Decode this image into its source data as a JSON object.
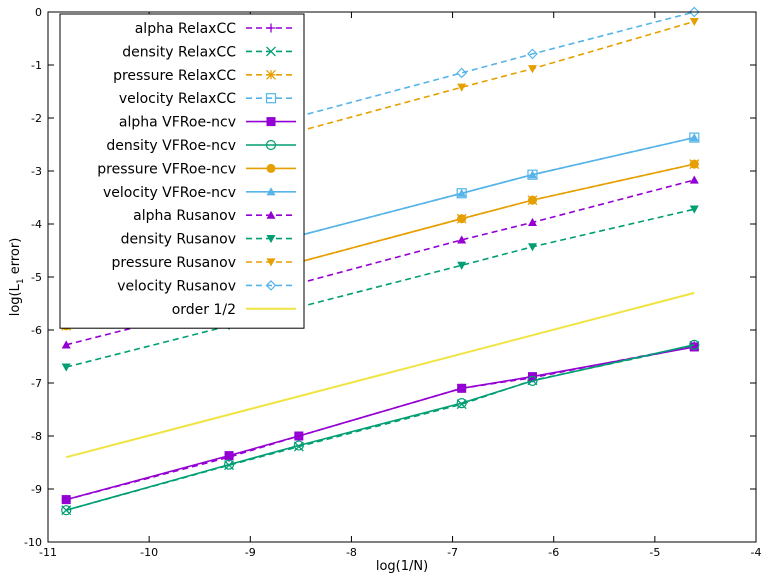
{
  "chart_data": {
    "type": "line",
    "title": "",
    "xlabel": "log(1/N)",
    "ylabel": "log(L",
    "ylabel_sub": "1",
    "ylabel_tail": " error)",
    "xlim": [
      -11,
      -4
    ],
    "ylim": [
      -10,
      0
    ],
    "xticks": [
      -11,
      -10,
      -9,
      -8,
      -7,
      -6,
      -5,
      -4
    ],
    "yticks": [
      -10,
      -9,
      -8,
      -7,
      -6,
      -5,
      -4,
      -3,
      -2,
      -1,
      0
    ],
    "grid": false,
    "legend_position": "top-left",
    "series": [
      {
        "name": "alpha RelaxCC",
        "color": "#9400d3",
        "dash": "dashed",
        "marker": "plus",
        "x": [
          -10.82,
          -9.21,
          -8.52,
          -6.91,
          -6.21,
          -4.61
        ],
        "y": [
          -9.2,
          -8.4,
          -8.0,
          -7.1,
          -6.9,
          -6.3
        ]
      },
      {
        "name": "density RelaxCC",
        "color": "#009e73",
        "dash": "dashed",
        "marker": "cross",
        "x": [
          -10.82,
          -9.21,
          -8.52,
          -6.91,
          -6.21,
          -4.61
        ],
        "y": [
          -9.4,
          -8.55,
          -8.2,
          -7.4,
          -6.95,
          -6.3
        ]
      },
      {
        "name": "pressure RelaxCC",
        "color": "#e69f00",
        "dash": "dashed",
        "marker": "star",
        "x": [
          -10.82,
          -9.21,
          -8.52,
          -6.91,
          -6.21,
          -4.61
        ],
        "y": [
          -5.92,
          -5.1,
          -4.72,
          -3.9,
          -3.55,
          -2.87
        ]
      },
      {
        "name": "velocity RelaxCC",
        "color": "#56b4e9",
        "dash": "dashed",
        "marker": "square-open",
        "x": [
          -10.82,
          -9.21,
          -8.52,
          -6.91,
          -6.21,
          -4.61
        ],
        "y": [
          -5.45,
          -4.6,
          -4.22,
          -3.42,
          -3.07,
          -2.37
        ]
      },
      {
        "name": "alpha VFRoe-ncv",
        "color": "#9400d3",
        "dash": "solid",
        "marker": "square-filled",
        "x": [
          -10.82,
          -9.21,
          -8.52,
          -6.91,
          -6.21,
          -4.61
        ],
        "y": [
          -9.2,
          -8.37,
          -8.0,
          -7.1,
          -6.88,
          -6.32
        ]
      },
      {
        "name": "density VFRoe-ncv",
        "color": "#009e73",
        "dash": "solid",
        "marker": "circle-open",
        "x": [
          -10.82,
          -9.21,
          -8.52,
          -6.91,
          -6.21,
          -4.61
        ],
        "y": [
          -9.4,
          -8.54,
          -8.18,
          -7.38,
          -6.96,
          -6.28
        ]
      },
      {
        "name": "pressure VFRoe-ncv",
        "color": "#e69f00",
        "dash": "solid",
        "marker": "circle-filled",
        "x": [
          -10.82,
          -9.21,
          -8.52,
          -6.91,
          -6.21,
          -4.61
        ],
        "y": [
          -5.92,
          -5.1,
          -4.72,
          -3.9,
          -3.55,
          -2.87
        ]
      },
      {
        "name": "velocity VFRoe-ncv",
        "color": "#56b4e9",
        "dash": "solid",
        "marker": "triangle-up",
        "x": [
          -10.82,
          -9.21,
          -8.52,
          -6.91,
          -6.21,
          -4.61
        ],
        "y": [
          -5.45,
          -4.6,
          -4.22,
          -3.42,
          -3.07,
          -2.37
        ]
      },
      {
        "name": "alpha Rusanov",
        "color": "#9400d3",
        "dash": "dashed",
        "marker": "triangle-up",
        "x": [
          -10.82,
          -9.21,
          -8.52,
          -6.91,
          -6.21,
          -4.61
        ],
        "y": [
          -6.28,
          -5.5,
          -5.12,
          -4.3,
          -3.97,
          -3.17
        ]
      },
      {
        "name": "density Rusanov",
        "color": "#009e73",
        "dash": "dashed",
        "marker": "triangle-down",
        "x": [
          -10.82,
          -9.21,
          -8.52,
          -6.91,
          -6.21,
          -4.61
        ],
        "y": [
          -6.7,
          -5.92,
          -5.57,
          -4.78,
          -4.43,
          -3.72
        ]
      },
      {
        "name": "pressure Rusanov",
        "color": "#e69f00",
        "dash": "dashed",
        "marker": "triangle-down",
        "x": [
          -10.82,
          -9.21,
          -8.52,
          -6.91,
          -6.21,
          -4.61
        ],
        "y": [
          -3.4,
          -2.65,
          -2.25,
          -1.42,
          -1.07,
          -0.18
        ]
      },
      {
        "name": "velocity Rusanov",
        "color": "#56b4e9",
        "dash": "dashed",
        "marker": "diamond-open",
        "x": [
          -10.82,
          -9.21,
          -8.52,
          -6.91,
          -6.21,
          -4.61
        ],
        "y": [
          -3.15,
          -2.35,
          -1.97,
          -1.15,
          -0.79,
          0.0
        ]
      },
      {
        "name": "order 1/2",
        "color": "#f0e442",
        "dash": "solid",
        "marker": "none",
        "x": [
          -10.82,
          -4.61
        ],
        "y": [
          -8.4,
          -5.3
        ]
      }
    ]
  }
}
